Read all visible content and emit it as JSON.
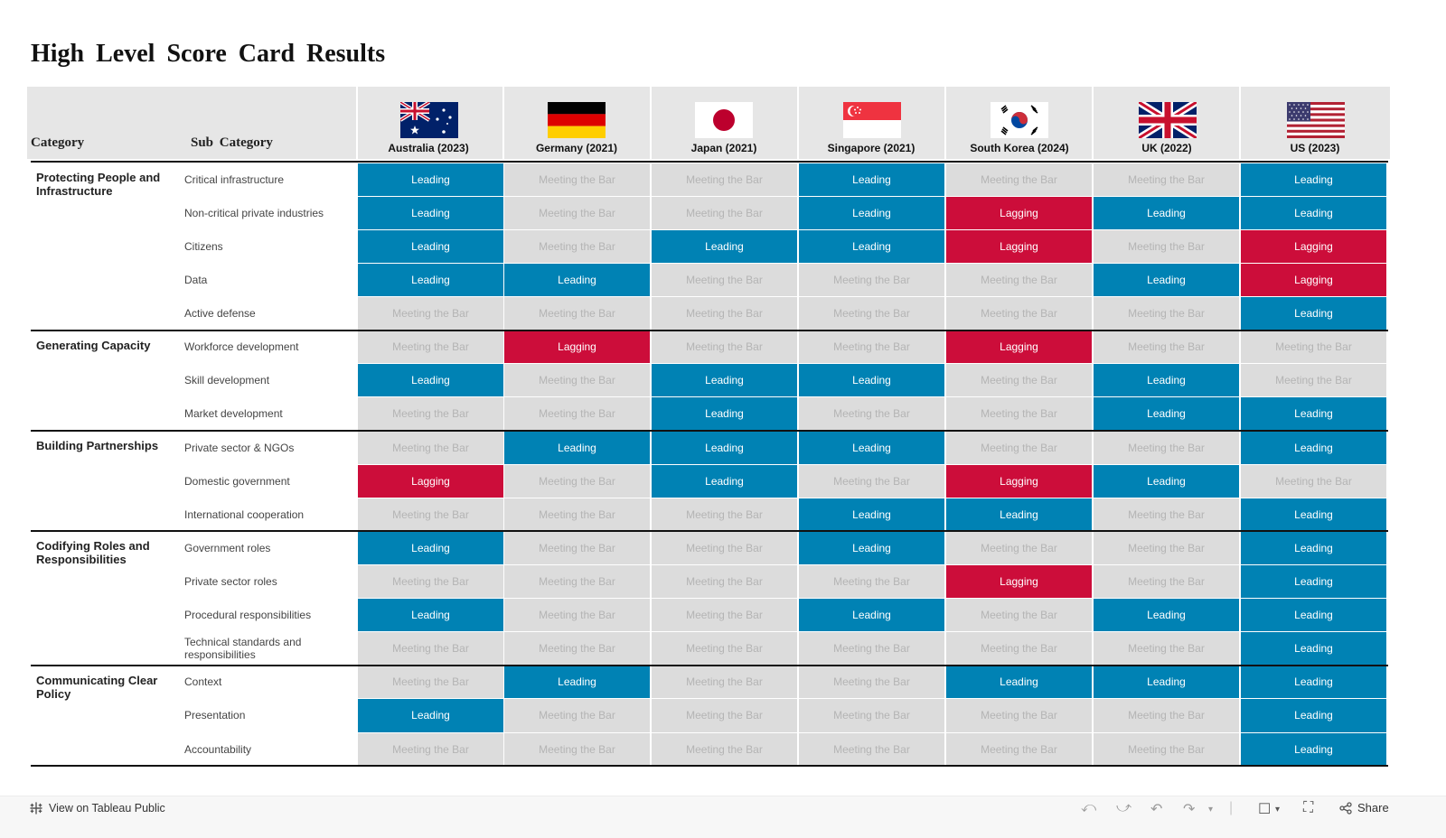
{
  "title": "High Level Score Card Results",
  "headers": {
    "category": "Category",
    "sub_category": "Sub Category"
  },
  "colors": {
    "Leading": "#0082b4",
    "Lagging": "#cc0d3a",
    "Meeting the Bar": "#dcdcdc",
    "leading_text": "#ffffff",
    "lagging_text": "#ffffff",
    "meeting_text": "#b4b4b4",
    "header_band": "#e6e6e6"
  },
  "countries": [
    {
      "name": "Australia (2023)",
      "flag": "australia-flag-icon"
    },
    {
      "name": "Germany (2021)",
      "flag": "germany-flag-icon"
    },
    {
      "name": "Japan (2021)",
      "flag": "japan-flag-icon"
    },
    {
      "name": "Singapore (2021)",
      "flag": "singapore-flag-icon"
    },
    {
      "name": "South Korea (2024)",
      "flag": "south-korea-flag-icon"
    },
    {
      "name": "UK (2022)",
      "flag": "uk-flag-icon"
    },
    {
      "name": "US (2023)",
      "flag": "us-flag-icon"
    }
  ],
  "rows": [
    {
      "category": "Protecting People and Infrastructure",
      "sub": "Critical infrastructure",
      "values": [
        "Leading",
        "Meeting the Bar",
        "Meeting the Bar",
        "Leading",
        "Meeting the Bar",
        "Meeting the Bar",
        "Leading"
      ]
    },
    {
      "category": "",
      "sub": "Non-critical private industries",
      "values": [
        "Leading",
        "Meeting the Bar",
        "Meeting the Bar",
        "Leading",
        "Lagging",
        "Leading",
        "Leading"
      ]
    },
    {
      "category": "",
      "sub": "Citizens",
      "values": [
        "Leading",
        "Meeting the Bar",
        "Leading",
        "Leading",
        "Lagging",
        "Meeting the Bar",
        "Lagging"
      ]
    },
    {
      "category": "",
      "sub": "Data",
      "values": [
        "Leading",
        "Leading",
        "Meeting the Bar",
        "Meeting the Bar",
        "Meeting the Bar",
        "Leading",
        "Lagging"
      ]
    },
    {
      "category": "",
      "sub": "Active defense",
      "values": [
        "Meeting the Bar",
        "Meeting the Bar",
        "Meeting the Bar",
        "Meeting the Bar",
        "Meeting the Bar",
        "Meeting the Bar",
        "Leading"
      ]
    },
    {
      "category": "Generating Capacity",
      "sub": "Workforce development",
      "values": [
        "Meeting the Bar",
        "Lagging",
        "Meeting the Bar",
        "Meeting the Bar",
        "Lagging",
        "Meeting the Bar",
        "Meeting the Bar"
      ]
    },
    {
      "category": "",
      "sub": "Skill development",
      "values": [
        "Leading",
        "Meeting the Bar",
        "Leading",
        "Leading",
        "Meeting the Bar",
        "Leading",
        "Meeting the Bar"
      ]
    },
    {
      "category": "",
      "sub": "Market development",
      "values": [
        "Meeting the Bar",
        "Meeting the Bar",
        "Leading",
        "Meeting the Bar",
        "Meeting the Bar",
        "Leading",
        "Leading"
      ]
    },
    {
      "category": "Building Partnerships",
      "sub": "Private sector & NGOs",
      "values": [
        "Meeting the Bar",
        "Leading",
        "Leading",
        "Leading",
        "Meeting the Bar",
        "Meeting the Bar",
        "Leading"
      ]
    },
    {
      "category": "",
      "sub": "Domestic government",
      "values": [
        "Lagging",
        "Meeting the Bar",
        "Leading",
        "Meeting the Bar",
        "Lagging",
        "Leading",
        "Meeting the Bar"
      ]
    },
    {
      "category": "",
      "sub": "International cooperation",
      "values": [
        "Meeting the Bar",
        "Meeting the Bar",
        "Meeting the Bar",
        "Leading",
        "Leading",
        "Meeting the Bar",
        "Leading"
      ]
    },
    {
      "category": "Codifying Roles and Responsibilities",
      "sub": "Government roles",
      "values": [
        "Leading",
        "Meeting the Bar",
        "Meeting the Bar",
        "Leading",
        "Meeting the Bar",
        "Meeting the Bar",
        "Leading"
      ]
    },
    {
      "category": "",
      "sub": "Private sector roles",
      "values": [
        "Meeting the Bar",
        "Meeting the Bar",
        "Meeting the Bar",
        "Meeting the Bar",
        "Lagging",
        "Meeting the Bar",
        "Leading"
      ]
    },
    {
      "category": "",
      "sub": "Procedural responsibilities",
      "values": [
        "Leading",
        "Meeting the Bar",
        "Meeting the Bar",
        "Leading",
        "Meeting the Bar",
        "Leading",
        "Leading"
      ]
    },
    {
      "category": "",
      "sub": "Technical standards and responsibilities",
      "values": [
        "Meeting the Bar",
        "Meeting the Bar",
        "Meeting the Bar",
        "Meeting the Bar",
        "Meeting the Bar",
        "Meeting the Bar",
        "Leading"
      ]
    },
    {
      "category": "Communicating Clear Policy",
      "sub": "Context",
      "values": [
        "Meeting the Bar",
        "Leading",
        "Meeting the Bar",
        "Meeting the Bar",
        "Leading",
        "Leading",
        "Leading"
      ]
    },
    {
      "category": "",
      "sub": "Presentation",
      "values": [
        "Leading",
        "Meeting the Bar",
        "Meeting the Bar",
        "Meeting the Bar",
        "Meeting the Bar",
        "Meeting the Bar",
        "Leading"
      ]
    },
    {
      "category": "",
      "sub": "Accountability",
      "values": [
        "Meeting the Bar",
        "Meeting the Bar",
        "Meeting the Bar",
        "Meeting the Bar",
        "Meeting the Bar",
        "Meeting the Bar",
        "Leading"
      ]
    }
  ],
  "footer": {
    "tableau_link": "View on Tableau Public",
    "share_label": "Share",
    "icons": [
      "undo-icon",
      "redo-icon",
      "revert-icon",
      "refresh-icon",
      "present-icon",
      "fullscreen-icon",
      "share-icon"
    ]
  }
}
